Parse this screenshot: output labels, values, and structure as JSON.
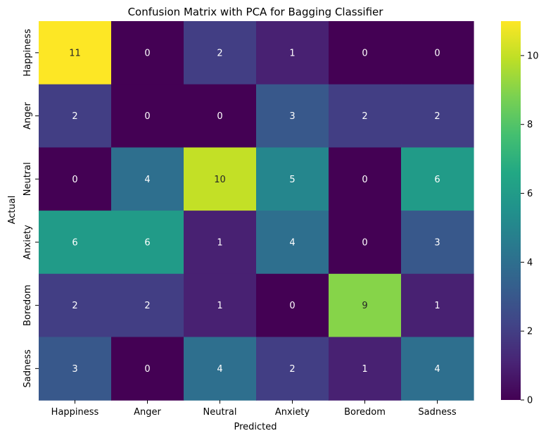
{
  "chart_data": {
    "type": "heatmap",
    "title": "Confusion Matrix with PCA for Bagging Classifier",
    "xlabel": "Predicted",
    "ylabel": "Actual",
    "x_categories": [
      "Happiness",
      "Anger",
      "Neutral",
      "Anxiety",
      "Boredom",
      "Sadness"
    ],
    "y_categories": [
      "Happiness",
      "Anger",
      "Neutral",
      "Anxiety",
      "Boredom",
      "Sadness"
    ],
    "values": [
      [
        11,
        0,
        2,
        1,
        0,
        0
      ],
      [
        2,
        0,
        0,
        3,
        2,
        2
      ],
      [
        0,
        4,
        10,
        5,
        0,
        6
      ],
      [
        6,
        6,
        1,
        4,
        0,
        3
      ],
      [
        2,
        2,
        1,
        0,
        9,
        1
      ],
      [
        3,
        0,
        4,
        2,
        1,
        4
      ]
    ],
    "colormap": "viridis",
    "vmin": 0,
    "vmax": 11,
    "colorbar_ticks": [
      0,
      2,
      4,
      6,
      8,
      10
    ],
    "annotations": true
  }
}
